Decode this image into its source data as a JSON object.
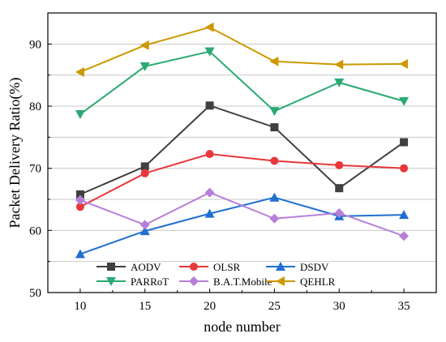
{
  "chart_data": {
    "type": "line",
    "xlabel": "node number",
    "ylabel": "Packet Delivery Ratio(%)",
    "x": [
      10,
      15,
      20,
      25,
      30,
      35
    ],
    "xticks": [
      10,
      15,
      20,
      25,
      30,
      35
    ],
    "xlim": [
      7.5,
      37.5
    ],
    "ylim": [
      50,
      95
    ],
    "yticks": [
      50,
      60,
      70,
      80,
      90
    ],
    "grid": "horizontal",
    "legend_placement": "bottom",
    "series": [
      {
        "name": "AODV",
        "color": "#404040",
        "marker": "square",
        "values": [
          65.8,
          70.3,
          80.1,
          76.6,
          66.8,
          74.2
        ]
      },
      {
        "name": "OLSR",
        "color": "#e8373a",
        "marker": "circle",
        "values": [
          63.8,
          69.2,
          72.3,
          71.2,
          70.5,
          70.0
        ]
      },
      {
        "name": "DSDV",
        "color": "#1f6fd1",
        "marker": "triangle-up",
        "values": [
          56.2,
          59.9,
          62.7,
          65.3,
          62.3,
          62.5
        ]
      },
      {
        "name": "PARRoT",
        "color": "#2aaa72",
        "marker": "triangle-down",
        "values": [
          78.7,
          86.4,
          88.8,
          79.2,
          83.8,
          80.8
        ]
      },
      {
        "name": "B.A.T.Mobile",
        "color": "#b77fd9",
        "marker": "diamond",
        "values": [
          64.9,
          60.9,
          66.1,
          61.9,
          62.8,
          59.1
        ]
      },
      {
        "name": "QEHLR",
        "color": "#cc9900",
        "marker": "triangle-left",
        "values": [
          85.5,
          89.8,
          92.7,
          87.2,
          86.7,
          86.8
        ]
      }
    ]
  }
}
